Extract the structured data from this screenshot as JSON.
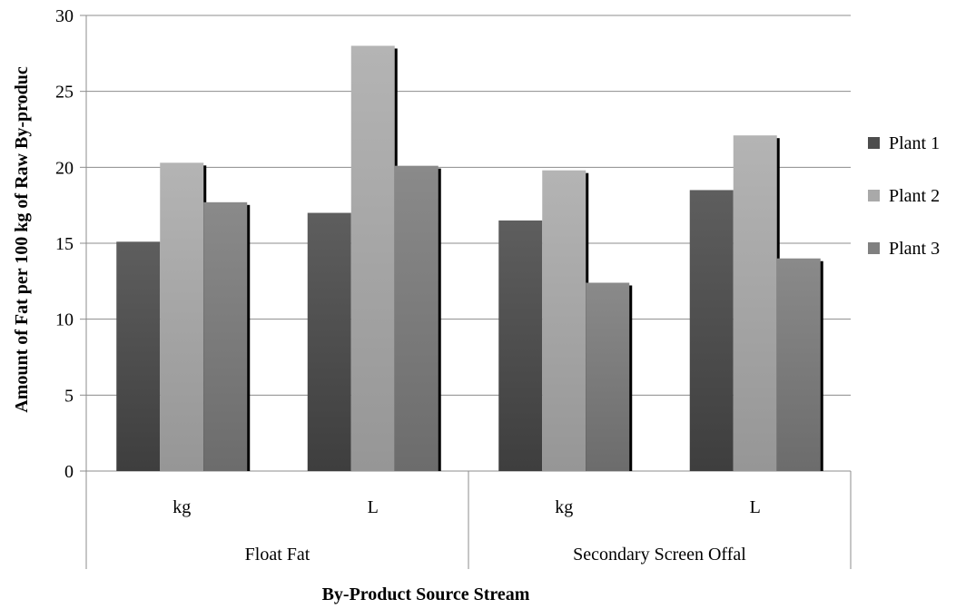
{
  "chart_data": {
    "type": "bar",
    "title": "",
    "xlabel": "By-Product  Source Stream",
    "ylabel": "Amount of Fat per 100 kg of Raw By-produc",
    "ylim": [
      0,
      30
    ],
    "yticks": [
      0,
      5,
      10,
      15,
      20,
      25,
      30
    ],
    "grid": true,
    "legend_position": "right",
    "categories": [
      "kg",
      "L",
      "kg",
      "L"
    ],
    "groups": [
      {
        "label": "Float Fat",
        "categories": [
          "kg",
          "L"
        ]
      },
      {
        "label": "Secondary Screen Offal",
        "categories": [
          "kg",
          "L"
        ]
      }
    ],
    "series": [
      {
        "name": "Plant 1",
        "values": [
          15.1,
          17.0,
          16.5,
          18.5
        ],
        "color": "#4d4d4d"
      },
      {
        "name": "Plant 2",
        "values": [
          20.3,
          28.0,
          19.8,
          22.1
        ],
        "color": "#a9a9a9"
      },
      {
        "name": "Plant 3",
        "values": [
          17.7,
          20.1,
          12.4,
          14.0
        ],
        "color": "#808080"
      }
    ]
  }
}
